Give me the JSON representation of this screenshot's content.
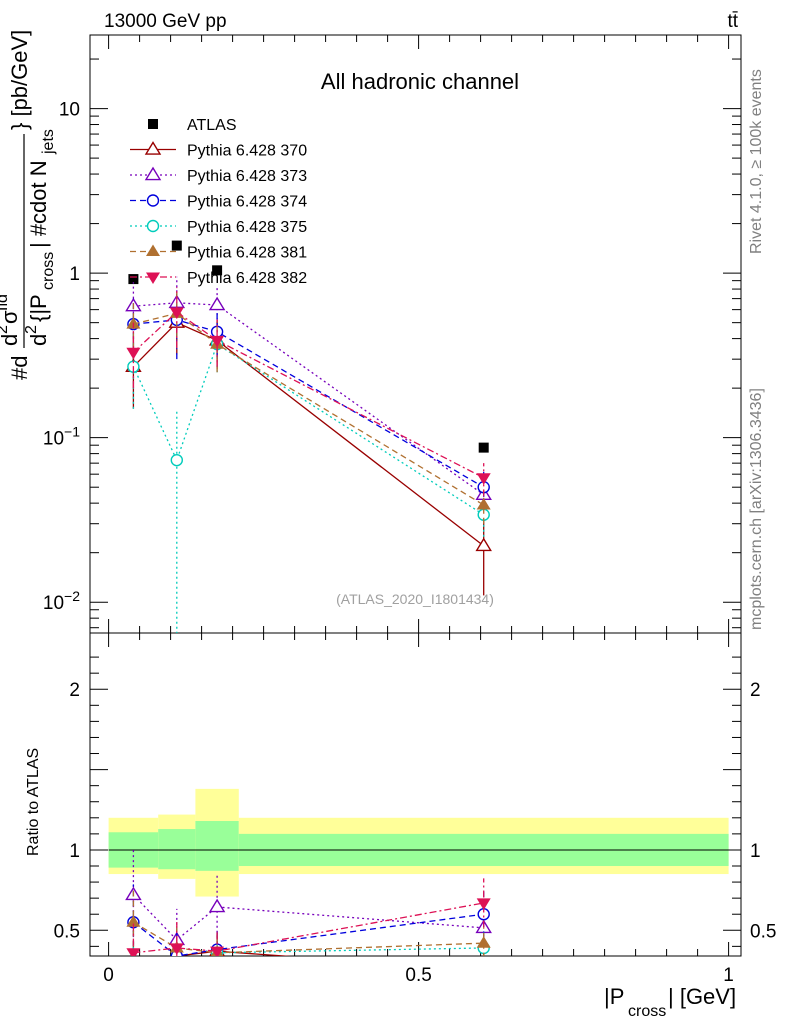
{
  "header": {
    "energy": "13000 GeV pp",
    "process": "tt̄",
    "channel": "All hadronic channel",
    "rivet": "Rivet 4.1.0, ≥ 100k events",
    "source": "mcplots.cern.ch [arXiv:1306.3436]",
    "analysis": "(ATLAS_2020_I1801434)"
  },
  "axis": {
    "ylabel_main": "#d d²σ^fid / d² {|P_cross| #cdot N_jets} [pb/GeV]",
    "ylabel_main_parts": [
      "#d",
      "d",
      "2",
      "σ",
      "fid",
      "d",
      "2",
      "{|P",
      "cross",
      "| #cdot N",
      "jets",
      "} [pb/GeV]"
    ],
    "ylabel_ratio": "Ratio to ATLAS",
    "xlabel_parts": [
      "|P",
      "cross",
      "| [GeV]"
    ],
    "xticks": [
      "0",
      "0.5",
      "1"
    ],
    "main_yticks": [
      {
        "value": 10,
        "mantissa": "10",
        "exp": ""
      },
      {
        "value": 1,
        "mantissa": "1",
        "exp": ""
      },
      {
        "value": 0.1,
        "mantissa": "10",
        "exp": "−1"
      },
      {
        "value": 0.01,
        "mantissa": "10",
        "exp": "−2"
      }
    ],
    "ratio_yticks": [
      "0.5",
      "1",
      "2"
    ]
  },
  "chart_data": {
    "type": "scatter",
    "x": [
      0.04,
      0.11,
      0.175,
      0.605
    ],
    "xbins": [
      [
        0,
        0.08
      ],
      [
        0.08,
        0.14
      ],
      [
        0.14,
        0.21
      ],
      [
        0.21,
        1.0
      ]
    ],
    "xlim": [
      -0.03,
      1.02
    ],
    "ylim_main": [
      0.0065,
      28
    ],
    "ylim_ratio": [
      0.34,
      2.35
    ],
    "ratio_bands": {
      "inner": [
        [
          0.89,
          1.11
        ],
        [
          0.88,
          1.13
        ],
        [
          0.87,
          1.18
        ],
        [
          0.9,
          1.1
        ]
      ],
      "outer": [
        [
          0.85,
          1.2
        ],
        [
          0.82,
          1.22
        ],
        [
          0.71,
          1.38
        ],
        [
          0.85,
          1.2
        ]
      ]
    },
    "series": [
      {
        "name": "ATLAS",
        "color": "#000000",
        "marker": "square-filled",
        "dash": "none",
        "values": [
          0.92,
          1.47,
          1.04,
          0.087
        ],
        "err": [
          null,
          null,
          null,
          null
        ],
        "ratio": [
          1,
          1,
          1,
          1
        ]
      },
      {
        "name": "Pythia 6.428 370",
        "color": "#990000",
        "marker": "triangle-up-open",
        "dash": "solid",
        "values": [
          0.27,
          0.5,
          0.39,
          0.022
        ],
        "err": [
          [
            0.15,
            0.4
          ],
          [
            0.32,
            0.75
          ],
          [
            0.26,
            0.52
          ],
          [
            0.011,
            0.034
          ]
        ],
        "ratio": [
          0.29,
          0.34,
          0.37,
          0.25
        ]
      },
      {
        "name": "Pythia 6.428 373",
        "color": "#7700bb",
        "marker": "triangle-up-open",
        "dash": "dot",
        "values": [
          0.63,
          0.66,
          0.64,
          0.045
        ],
        "err": [
          [
            0.4,
            0.88
          ],
          [
            0.38,
            0.95
          ],
          [
            0.45,
            0.84
          ],
          [
            0.035,
            0.056
          ]
        ],
        "ratio": [
          0.72,
          0.44,
          0.645,
          0.515
        ]
      },
      {
        "name": "Pythia 6.428 374",
        "color": "#0000dd",
        "marker": "circle-open",
        "dash": "dash",
        "values": [
          0.49,
          0.52,
          0.44,
          0.05
        ],
        "err": [
          [
            0.3,
            0.7
          ],
          [
            0.3,
            0.75
          ],
          [
            0.3,
            0.58
          ],
          [
            0.038,
            0.062
          ]
        ],
        "ratio": [
          0.55,
          0.34,
          0.38,
          0.6
        ]
      },
      {
        "name": "Pythia 6.428 375",
        "color": "#00ccbb",
        "marker": "circle-open",
        "dash": "dot",
        "values": [
          0.27,
          0.073,
          0.37,
          0.034
        ],
        "err": [
          [
            0.15,
            0.4
          ],
          [
            0.006,
            0.15
          ],
          [
            0.25,
            0.5
          ],
          [
            0.025,
            0.043
          ]
        ],
        "ratio": [
          0.3,
          0.05,
          0.36,
          0.39
        ]
      },
      {
        "name": "Pythia 6.428 381",
        "color": "#b07030",
        "marker": "triangle-up-filled",
        "dash": "dash",
        "values": [
          0.49,
          0.57,
          0.37,
          0.039
        ],
        "err": [
          [
            0.3,
            0.68
          ],
          [
            0.35,
            0.8
          ],
          [
            0.25,
            0.5
          ],
          [
            0.03,
            0.048
          ]
        ],
        "ratio": [
          0.55,
          0.39,
          0.36,
          0.42
        ]
      },
      {
        "name": "Pythia 6.428 382",
        "color": "#dd1155",
        "marker": "triangle-down-filled",
        "dash": "dashdot",
        "values": [
          0.33,
          0.58,
          0.39,
          0.057
        ],
        "err": [
          [
            0.2,
            0.5
          ],
          [
            0.35,
            0.82
          ],
          [
            0.27,
            0.52
          ],
          [
            0.044,
            0.07
          ]
        ],
        "ratio": [
          0.36,
          0.39,
          0.37,
          0.67
        ]
      }
    ]
  }
}
